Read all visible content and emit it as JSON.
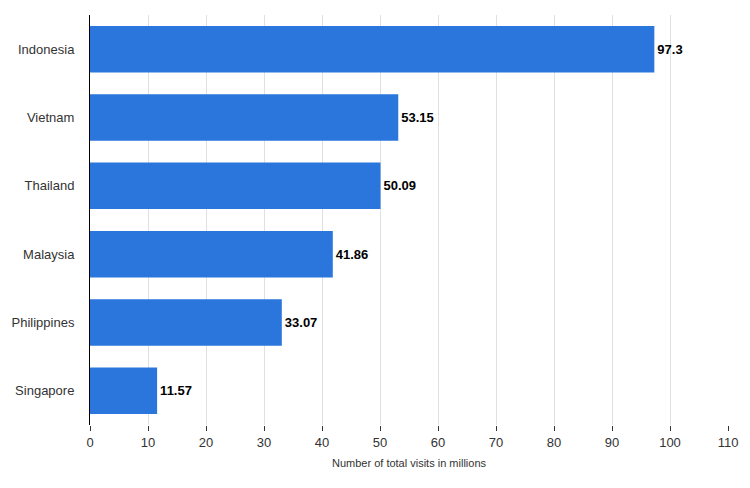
{
  "chart_data": {
    "type": "bar",
    "orientation": "horizontal",
    "categories": [
      "Indonesia",
      "Vietnam",
      "Thailand",
      "Malaysia",
      "Philippines",
      "Singapore"
    ],
    "values": [
      97.3,
      53.15,
      50.09,
      41.86,
      33.07,
      11.57
    ],
    "color": "#2a76dd",
    "x_label": "Number of total visits in millions",
    "xlim": [
      0,
      110
    ],
    "xticks": [
      0,
      10,
      20,
      30,
      40,
      50,
      60,
      70,
      80,
      90,
      100,
      110
    ],
    "grid": true,
    "data_labels": true
  }
}
